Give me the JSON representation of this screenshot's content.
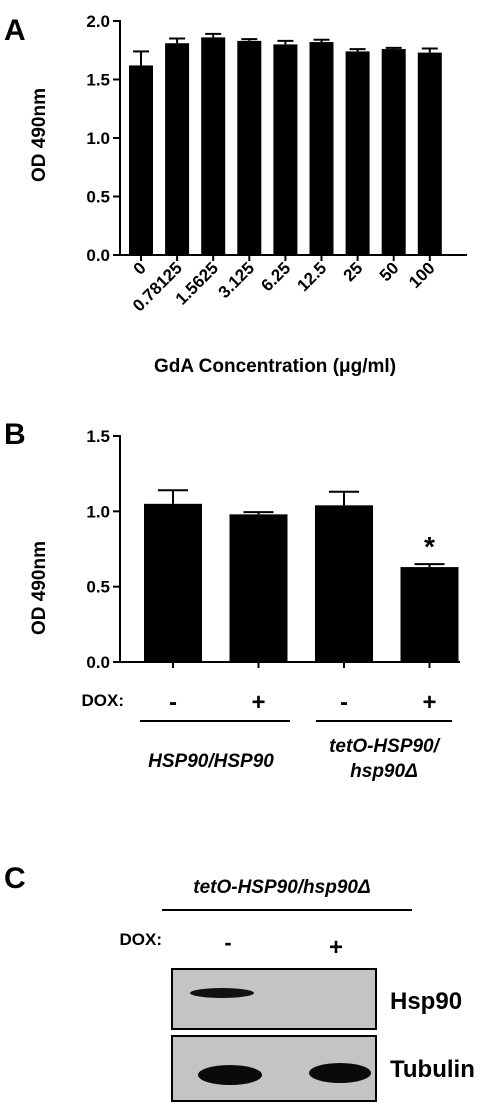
{
  "panels": {
    "a": {
      "letter": "A"
    },
    "b": {
      "letter": "B"
    },
    "c": {
      "letter": "C"
    }
  },
  "chart_data": [
    {
      "type": "bar",
      "panel": "A",
      "categories": [
        "0",
        "0.78125",
        "1.5625",
        "3.125",
        "6.25",
        "12.5",
        "25",
        "50",
        "100"
      ],
      "values": [
        1.62,
        1.81,
        1.86,
        1.83,
        1.8,
        1.82,
        1.74,
        1.76,
        1.73
      ],
      "errors": [
        0.12,
        0.04,
        0.03,
        0.015,
        0.03,
        0.02,
        0.02,
        0.01,
        0.035
      ],
      "xlabel": "GdA Concentration (μg/ml)",
      "ylabel": "OD 490nm",
      "ylim": [
        0,
        2.0
      ],
      "yticks": [
        "0.0",
        "0.5",
        "1.0",
        "1.5",
        "2.0"
      ],
      "grid": false
    },
    {
      "type": "bar",
      "panel": "B",
      "categories": [
        "-",
        "+",
        "-",
        "+"
      ],
      "values": [
        1.05,
        0.98,
        1.04,
        0.63
      ],
      "errors": [
        0.09,
        0.015,
        0.09,
        0.02
      ],
      "annotations": [
        "",
        "",
        "",
        "*"
      ],
      "xlabel": "",
      "ylabel": "OD 490nm",
      "ylim": [
        0,
        1.5
      ],
      "yticks": [
        "0.0",
        "0.5",
        "1.0",
        "1.5"
      ],
      "row_label": "DOX:",
      "group_labels": [
        "HSP90/HSP90",
        "tetO-HSP90/",
        "hsp90Δ"
      ],
      "grid": false
    }
  ],
  "blot": {
    "title": "tetO-HSP90/hsp90Δ",
    "dox_label": "DOX:",
    "lanes": [
      "-",
      "+"
    ],
    "bands": [
      "Hsp90",
      "Tubulin"
    ]
  }
}
